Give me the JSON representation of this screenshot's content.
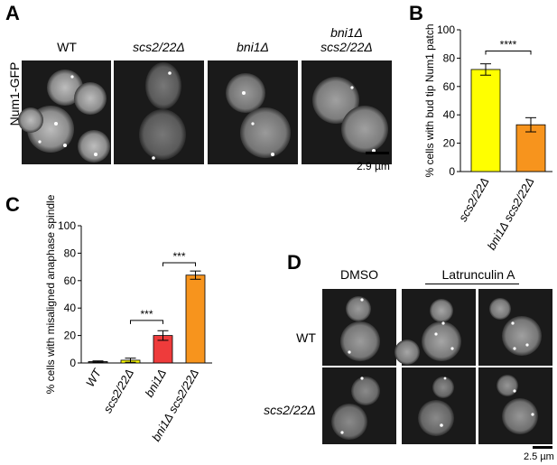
{
  "panels": {
    "A": {
      "label": "A",
      "ylabel": "Num1-GFP",
      "columns": [
        {
          "text": "WT",
          "italic": false
        },
        {
          "text": "scs2/22Δ",
          "italic": true
        },
        {
          "text": "bni1Δ",
          "italic": true
        },
        {
          "line1": "bni1Δ",
          "line2": "scs2/22Δ",
          "italic": true
        }
      ],
      "scalebar": "2.9 µm"
    },
    "B": {
      "label": "B",
      "significance": "****",
      "chart_data": {
        "type": "bar",
        "categories": [
          "scs2/22Δ",
          "bni1Δ scs2/22Δ"
        ],
        "values": [
          72,
          33
        ],
        "errors": [
          4,
          5
        ],
        "colors": [
          "#FFFF00",
          "#F7941D"
        ],
        "ylabel": "% cells with bud tip Num1 patch",
        "ylim": [
          0,
          100
        ],
        "yticks": [
          0,
          20,
          40,
          60,
          80,
          100
        ]
      }
    },
    "C": {
      "label": "C",
      "significance": [
        "***",
        "***"
      ],
      "chart_data": {
        "type": "bar",
        "categories": [
          "WT",
          "scs2/22Δ",
          "bni1Δ",
          "bni1Δ scs2/22Δ"
        ],
        "values": [
          1,
          2,
          20,
          64
        ],
        "errors": [
          0.5,
          1.5,
          3.5,
          3
        ],
        "colors": [
          "#444444",
          "#FFFF00",
          "#EE3B3B",
          "#F7941D"
        ],
        "ylabel": "% cells with misaligned anaphase spindle",
        "ylim": [
          0,
          100
        ],
        "yticks": [
          0,
          20,
          40,
          60,
          80,
          100
        ]
      }
    },
    "D": {
      "label": "D",
      "conditions": [
        "DMSO",
        "Latrunculin A"
      ],
      "rows": [
        {
          "text": "WT",
          "italic": false
        },
        {
          "text": "scs2/22Δ",
          "italic": true
        }
      ],
      "scalebar": "2.5 µm"
    }
  }
}
